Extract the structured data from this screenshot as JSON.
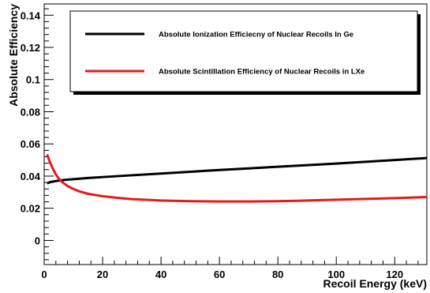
{
  "chart_data": {
    "type": "line",
    "title": "",
    "xlabel": "Recoil Energy (keV)",
    "ylabel": "Absolute Efficiency",
    "xlim": [
      0,
      131
    ],
    "ylim": [
      -0.015,
      0.147
    ],
    "x_ticks": [
      0,
      20,
      40,
      60,
      80,
      100,
      120
    ],
    "x_tick_labels": [
      "0",
      "20",
      "40",
      "60",
      "80",
      "100",
      "120"
    ],
    "y_ticks": [
      0,
      0.02,
      0.04,
      0.06,
      0.08,
      0.1,
      0.12,
      0.14
    ],
    "y_tick_labels": [
      "0",
      "0.02",
      "0.04",
      "0.06",
      "0.08",
      "0.1",
      "0.12",
      "0.14"
    ],
    "grid": false,
    "legend_position": "top-right",
    "series": [
      {
        "name": "Absolute Ionization Efficiecny of Nuclear Recoils In Ge",
        "color": "#000000",
        "x": [
          1,
          2,
          3,
          5,
          8,
          10,
          15,
          20,
          30,
          40,
          50,
          60,
          70,
          80,
          90,
          100,
          110,
          120,
          131
        ],
        "y": [
          0.0355,
          0.0362,
          0.0366,
          0.0372,
          0.0378,
          0.0381,
          0.0388,
          0.0394,
          0.0405,
          0.0416,
          0.0427,
          0.0438,
          0.0448,
          0.0458,
          0.0468,
          0.0478,
          0.0489,
          0.05,
          0.0512
        ]
      },
      {
        "name": "Absolute Scintillation Efficiency of Nuclear Recoils in LXe",
        "color": "#e41a1a",
        "x": [
          1,
          1.5,
          2,
          3,
          4,
          5,
          6,
          8,
          10,
          12,
          15,
          20,
          25,
          30,
          40,
          50,
          60,
          70,
          80,
          90,
          100,
          110,
          120,
          131
        ],
        "y": [
          0.0535,
          0.051,
          0.0485,
          0.0445,
          0.041,
          0.0385,
          0.0365,
          0.0338,
          0.032,
          0.0305,
          0.029,
          0.0275,
          0.0265,
          0.0257,
          0.0248,
          0.0244,
          0.0242,
          0.0242,
          0.0244,
          0.0248,
          0.0253,
          0.0258,
          0.0263,
          0.027
        ]
      }
    ]
  }
}
